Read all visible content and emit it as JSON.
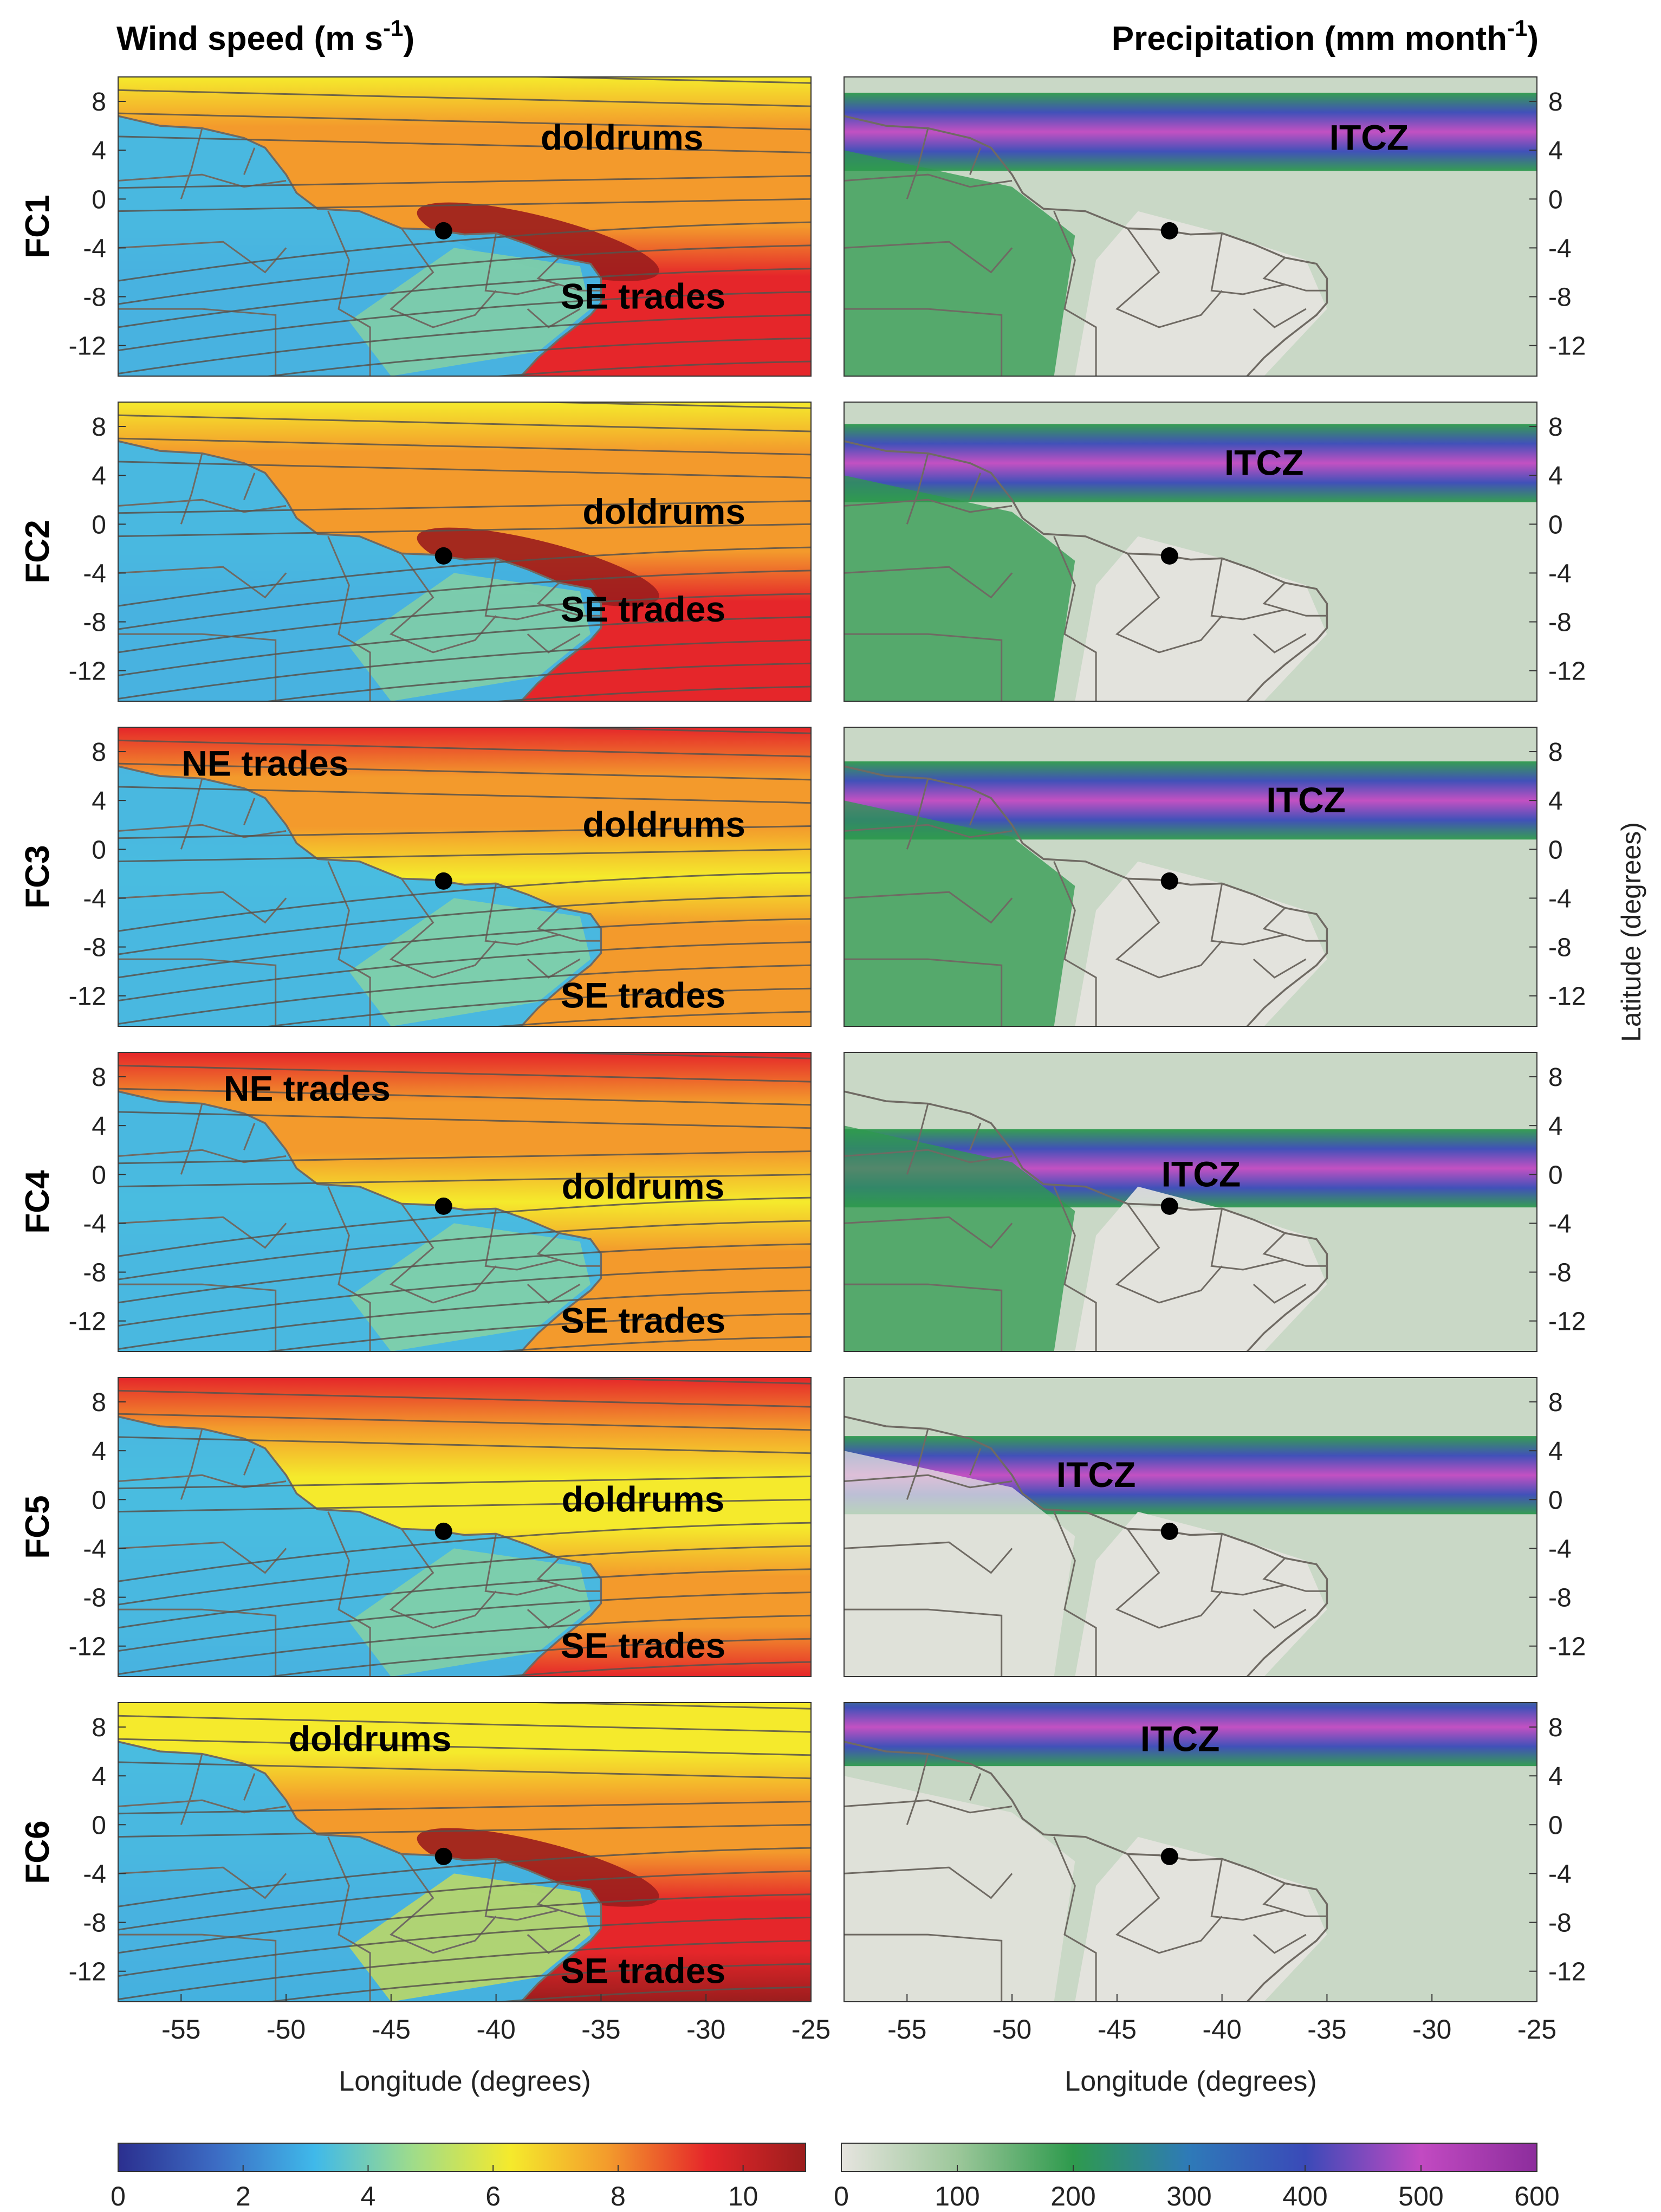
{
  "figure": {
    "columns": [
      {
        "title": "Wind speed (m s",
        "title_sup": "-1",
        "title_end": ")"
      },
      {
        "title": "Precipitation (mm month",
        "title_sup": "-1",
        "title_end": ")"
      }
    ],
    "ylabel_right": "Latitude (degrees)",
    "xlabel": "Longitude (degrees)"
  },
  "chart_data": {
    "type": "heatmap",
    "description_scope": "paired maps per forcing case",
    "x_ticks": [
      -55,
      -50,
      -45,
      -40,
      -35,
      -30,
      -25
    ],
    "y_ticks": [
      8,
      4,
      0,
      -4,
      -8,
      -12
    ],
    "xlim": [
      -58,
      -25
    ],
    "ylim": [
      -14.5,
      10
    ],
    "site_marker": {
      "lon": -42.5,
      "lat": -2.6
    },
    "wind_colorbar": {
      "min": 0,
      "max": 11,
      "ticks": [
        0,
        2,
        4,
        6,
        8,
        10
      ],
      "stops": [
        "#2b2f8f",
        "#3c6cc4",
        "#3fb9ea",
        "#9fdc8a",
        "#f5ea2c",
        "#f39a2c",
        "#e5262a",
        "#9b1d1d"
      ]
    },
    "precip_colorbar": {
      "min": 0,
      "max": 600,
      "ticks": [
        0,
        100,
        200,
        300,
        400,
        500,
        600
      ],
      "stops": [
        "#e6e4df",
        "#9cc79a",
        "#2e9a4d",
        "#2e7ab8",
        "#3a4ab8",
        "#c24ac2",
        "#8c2d9c"
      ]
    },
    "panels": [
      {
        "row": "FC1",
        "wind_labels": [
          {
            "text": "doldrums",
            "lon": -34,
            "lat": 5
          },
          {
            "text": "SE trades",
            "lon": -33,
            "lat": -8
          }
        ],
        "precip_labels": [
          {
            "text": "ITCZ",
            "lon": -33,
            "lat": 5
          }
        ],
        "itcz_lat": 5.5
      },
      {
        "row": "FC2",
        "wind_labels": [
          {
            "text": "doldrums",
            "lon": -32,
            "lat": 1
          },
          {
            "text": "SE trades",
            "lon": -33,
            "lat": -7
          }
        ],
        "precip_labels": [
          {
            "text": "ITCZ",
            "lon": -38,
            "lat": 5
          }
        ],
        "itcz_lat": 5
      },
      {
        "row": "FC3",
        "wind_labels": [
          {
            "text": "NE trades",
            "lon": -51,
            "lat": 7
          },
          {
            "text": "doldrums",
            "lon": -32,
            "lat": 2
          },
          {
            "text": "SE trades",
            "lon": -33,
            "lat": -12
          }
        ],
        "precip_labels": [
          {
            "text": "ITCZ",
            "lon": -36,
            "lat": 4
          }
        ],
        "itcz_lat": 4
      },
      {
        "row": "FC4",
        "wind_labels": [
          {
            "text": "NE trades",
            "lon": -49,
            "lat": 7
          },
          {
            "text": "doldrums",
            "lon": -33,
            "lat": -1
          },
          {
            "text": "SE trades",
            "lon": -33,
            "lat": -12
          }
        ],
        "precip_labels": [
          {
            "text": "ITCZ",
            "lon": -41,
            "lat": 0
          }
        ],
        "itcz_lat": 0.5
      },
      {
        "row": "FC5",
        "wind_labels": [
          {
            "text": "doldrums",
            "lon": -33,
            "lat": 0
          },
          {
            "text": "SE trades",
            "lon": -33,
            "lat": -12
          }
        ],
        "precip_labels": [
          {
            "text": "ITCZ",
            "lon": -46,
            "lat": 2
          }
        ],
        "itcz_lat": 2
      },
      {
        "row": "FC6",
        "wind_labels": [
          {
            "text": "doldrums",
            "lon": -46,
            "lat": 7
          },
          {
            "text": "SE trades",
            "lon": -33,
            "lat": -12
          }
        ],
        "precip_labels": [
          {
            "text": "ITCZ",
            "lon": -42,
            "lat": 7
          }
        ],
        "itcz_lat": 8
      }
    ]
  }
}
